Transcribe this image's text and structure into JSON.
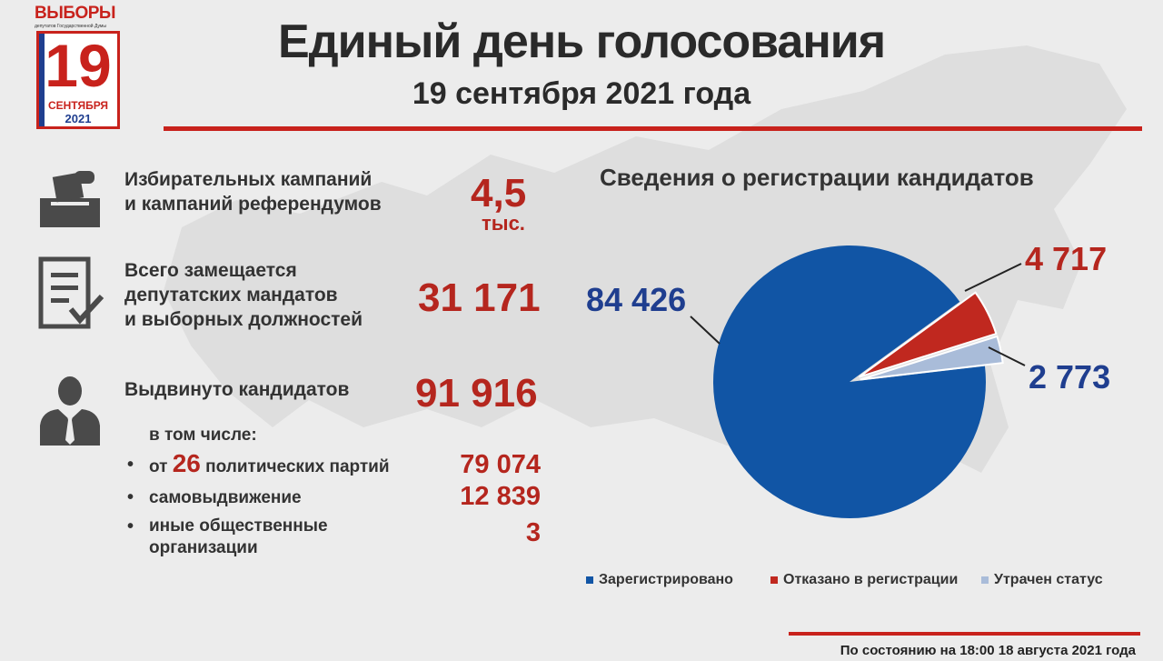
{
  "logo": {
    "title": "ВЫБОРЫ",
    "subtitle": "депутатов Государственной Думы",
    "day": "19",
    "month": "СЕНТЯБРЯ",
    "year": "2021"
  },
  "header": {
    "title": "Единый день голосования",
    "subtitle": "19 сентября 2021 года"
  },
  "stats": {
    "campaigns_label_1": "Избирательных кампаний",
    "campaigns_label_2": "и кампаний референдумов",
    "campaigns_value": "4,5",
    "campaigns_unit": "тыс.",
    "mandates_label_1": "Всего замещается",
    "mandates_label_2": "депутатских мандатов",
    "mandates_label_3": "и выборных должностей",
    "mandates_value": "31 171",
    "candidates_label": "Выдвинуто кандидатов",
    "candidates_value": "91 916",
    "including_label": "в том числе:",
    "parties_prefix": "от",
    "parties_count": "26",
    "parties_suffix": "политических партий",
    "parties_value": "79 074",
    "self_label": "самовыдвижение",
    "self_value": "12 839",
    "other_label_1": "иные общественные",
    "other_label_2": "организации",
    "other_value": "3"
  },
  "chart_data": {
    "type": "pie",
    "title": "Сведения о регистрации кандидатов",
    "slices": [
      {
        "name": "Зарегистрировано",
        "value": 84426,
        "label": "84 426",
        "color": "#1155a5"
      },
      {
        "name": "Отказано в регистрации",
        "value": 4717,
        "label": "4 717",
        "color": "#c0281f"
      },
      {
        "name": "Утрачен статус",
        "value": 2773,
        "label": "2 773",
        "color": "#a9bcd9"
      }
    ],
    "legend_position": "bottom"
  },
  "footer": {
    "note": "По состоянию на 18:00 18 августа 2021 года"
  },
  "colors": {
    "accent_red": "#c8221c",
    "accent_blue": "#1155a5"
  }
}
